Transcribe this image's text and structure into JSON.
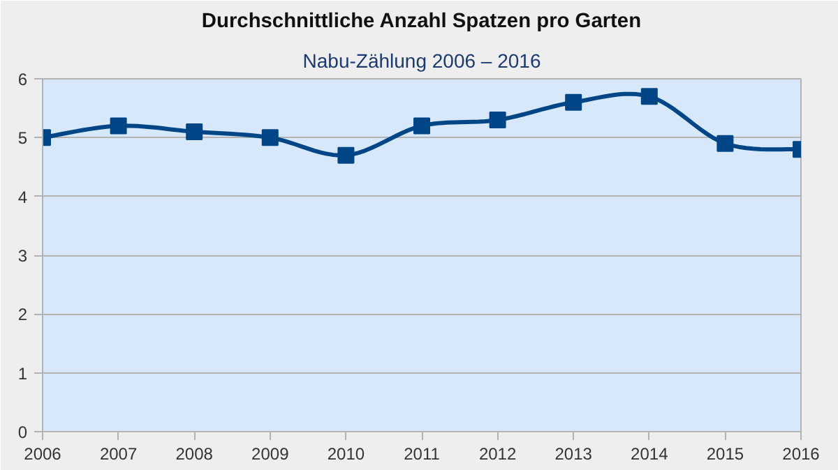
{
  "chart_data": {
    "type": "line",
    "title": "Durchschnittliche Anzahl Spatzen pro Garten",
    "subtitle": "Nabu-Zählung 2006 – 2016",
    "x": [
      2006,
      2007,
      2008,
      2009,
      2010,
      2011,
      2012,
      2013,
      2014,
      2015,
      2016
    ],
    "series": [
      {
        "color": "#004586",
        "values": [
          5.0,
          5.2,
          5.1,
          5.0,
          4.7,
          5.2,
          5.3,
          5.6,
          5.7,
          4.9,
          4.8
        ]
      }
    ],
    "xlim": [
      2006,
      2016
    ],
    "xticks": [
      2006,
      2007,
      2008,
      2009,
      2010,
      2011,
      2012,
      2013,
      2014,
      2015,
      2016
    ],
    "ylim": [
      0,
      6
    ],
    "yticks": [
      0,
      1,
      2,
      3,
      4,
      5,
      6
    ],
    "grid": "y",
    "marker": "square"
  }
}
